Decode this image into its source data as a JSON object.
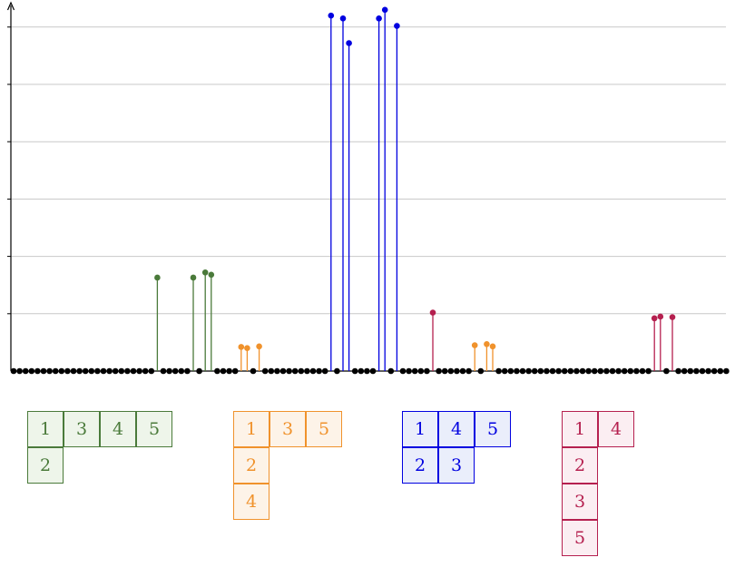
{
  "chart_data": {
    "type": "stem",
    "title": "",
    "xlabel": "",
    "ylabel": "",
    "grid": true,
    "ylim": [
      0,
      6
    ],
    "n_points": 120,
    "baseline_color": "#000000",
    "colors": {
      "green": "#4a7a3a",
      "orange": "#f0922c",
      "blue": "#0000e0",
      "crimson": "#b5204f"
    },
    "stems": [
      {
        "index": 24,
        "value": 1.63,
        "group": "green"
      },
      {
        "index": 30,
        "value": 1.63,
        "group": "green"
      },
      {
        "index": 32,
        "value": 1.72,
        "group": "green"
      },
      {
        "index": 33,
        "value": 1.68,
        "group": "green"
      },
      {
        "index": 38,
        "value": 0.42,
        "group": "orange"
      },
      {
        "index": 39,
        "value": 0.4,
        "group": "orange"
      },
      {
        "index": 41,
        "value": 0.43,
        "group": "orange"
      },
      {
        "index": 53,
        "value": 6.2,
        "group": "blue"
      },
      {
        "index": 55,
        "value": 6.15,
        "group": "blue"
      },
      {
        "index": 56,
        "value": 5.72,
        "group": "blue"
      },
      {
        "index": 61,
        "value": 6.15,
        "group": "blue"
      },
      {
        "index": 62,
        "value": 6.3,
        "group": "blue"
      },
      {
        "index": 64,
        "value": 6.02,
        "group": "blue"
      },
      {
        "index": 70,
        "value": 1.02,
        "group": "crimson"
      },
      {
        "index": 77,
        "value": 0.45,
        "group": "orange"
      },
      {
        "index": 79,
        "value": 0.47,
        "group": "orange"
      },
      {
        "index": 80,
        "value": 0.43,
        "group": "orange"
      },
      {
        "index": 107,
        "value": 0.92,
        "group": "crimson"
      },
      {
        "index": 108,
        "value": 0.95,
        "group": "crimson"
      },
      {
        "index": 110,
        "value": 0.94,
        "group": "crimson"
      }
    ]
  },
  "tableaux": [
    {
      "name": "green-tableau",
      "color": "#4a7a3a",
      "fill": "#eef5ea",
      "rows": [
        [
          "1",
          "3",
          "4",
          "5"
        ],
        [
          "2"
        ]
      ]
    },
    {
      "name": "orange-tableau",
      "color": "#f0922c",
      "fill": "#fdf3e8",
      "rows": [
        [
          "1",
          "3",
          "5"
        ],
        [
          "2"
        ],
        [
          "4"
        ]
      ]
    },
    {
      "name": "blue-tableau",
      "color": "#0000e0",
      "fill": "#eaeefb",
      "rows": [
        [
          "1",
          "4",
          "5"
        ],
        [
          "2",
          "3"
        ]
      ]
    },
    {
      "name": "crimson-tableau",
      "color": "#b5204f",
      "fill": "#fbeef2",
      "rows": [
        [
          "1",
          "4"
        ],
        [
          "2"
        ],
        [
          "3"
        ],
        [
          "5"
        ]
      ]
    }
  ]
}
